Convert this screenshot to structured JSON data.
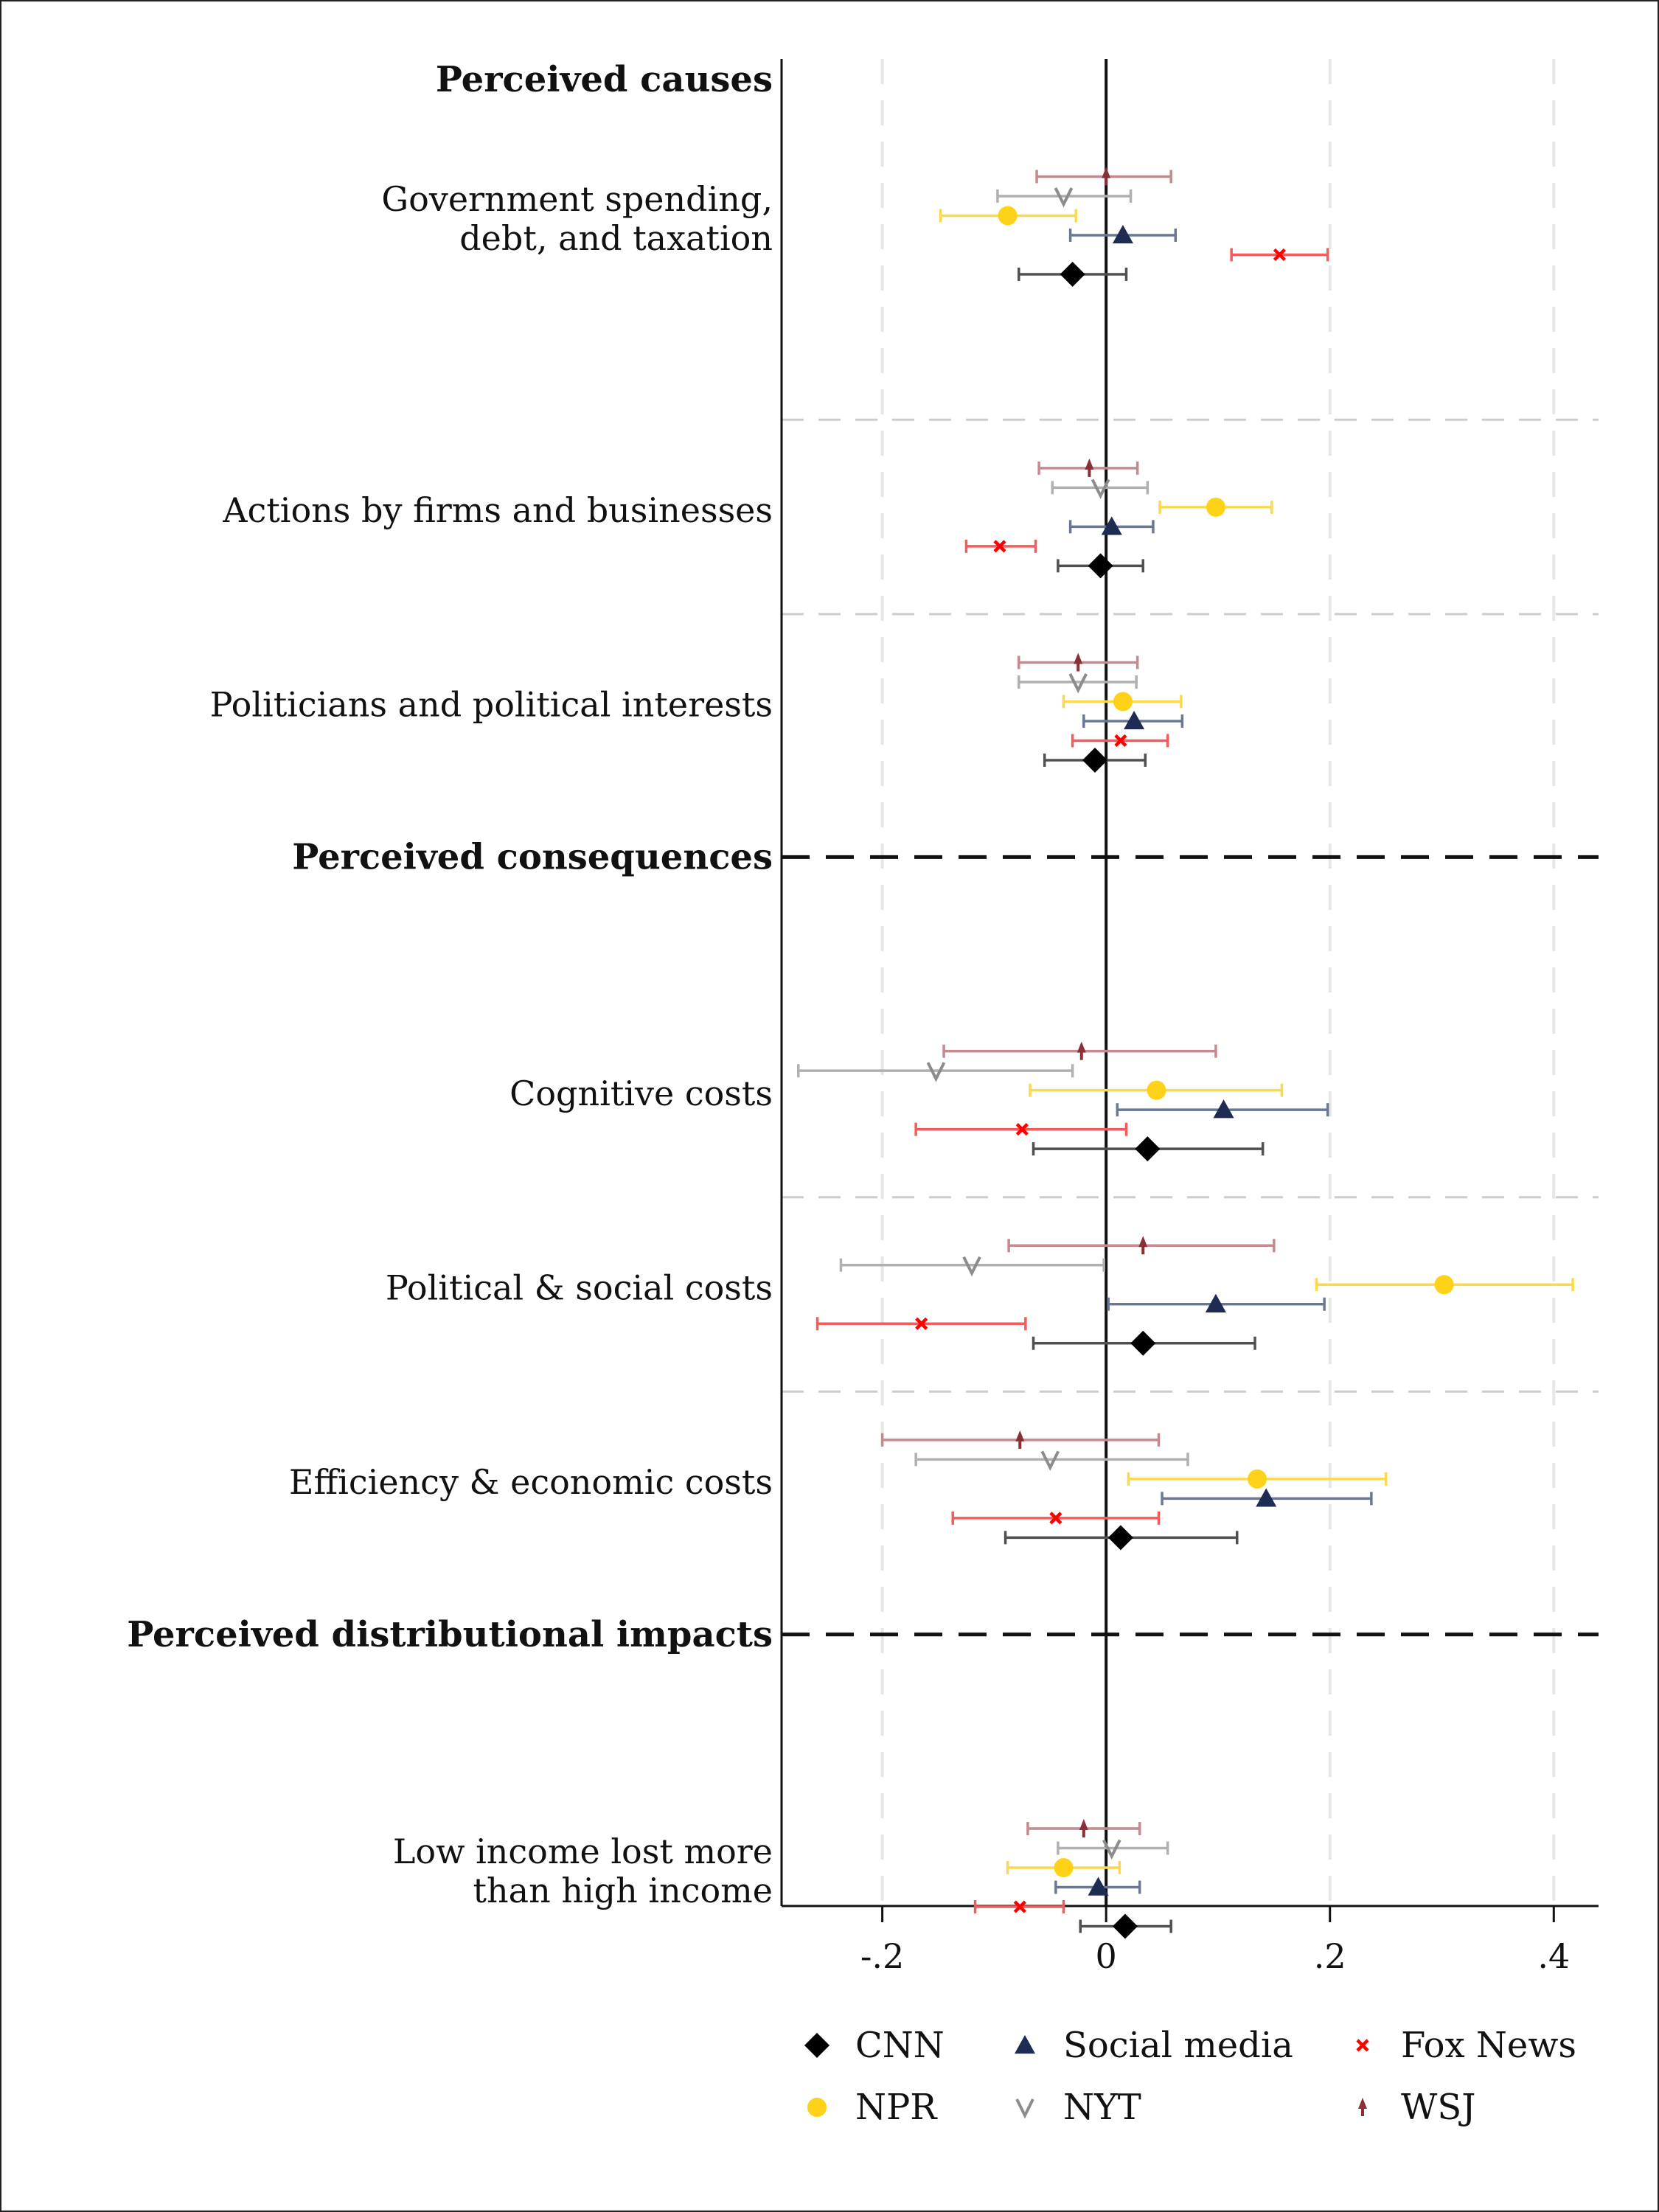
{
  "chart_data": {
    "type": "scatter",
    "subtype": "coefficient-plot-with-error-bars",
    "orientation": "horizontal",
    "xlim": [
      -0.29,
      0.44
    ],
    "x_ticks": [
      -0.2,
      0,
      0.2,
      0.4
    ],
    "x_tick_labels": [
      "-.2",
      "0",
      ".2",
      ".4"
    ],
    "reference_line": 0,
    "grid": "dashed vertical lines at ticks",
    "legend_position": "bottom",
    "sections": [
      {
        "id": "causes",
        "label": "Perceived causes"
      },
      {
        "id": "consequences",
        "label": "Perceived consequences"
      },
      {
        "id": "distributional",
        "label": "Perceived distributional impacts"
      }
    ],
    "categories": [
      {
        "section": "causes",
        "label_lines": [
          "Government spending,",
          "debt, and taxation"
        ]
      },
      {
        "section": "causes",
        "label_lines": [
          "Actions by firms and businesses"
        ]
      },
      {
        "section": "causes",
        "label_lines": [
          "Politicians and political interests"
        ]
      },
      {
        "section": "consequences",
        "label_lines": [
          "Cognitive costs"
        ]
      },
      {
        "section": "consequences",
        "label_lines": [
          "Political & social costs"
        ]
      },
      {
        "section": "consequences",
        "label_lines": [
          "Efficiency & economic costs"
        ]
      },
      {
        "section": "distributional",
        "label_lines": [
          "Low income lost more",
          "than high income"
        ]
      }
    ],
    "series": [
      {
        "name": "WSJ",
        "marker": "arrow-up",
        "color": "#8B2F37",
        "bar_color": "#C48A8F",
        "values": [
          0.0,
          -0.015,
          -0.025,
          -0.022,
          0.033,
          -0.077,
          -0.02
        ],
        "ci_low": [
          -0.062,
          -0.06,
          -0.078,
          -0.145,
          -0.087,
          -0.2,
          -0.07
        ],
        "ci_high": [
          0.058,
          0.028,
          0.028,
          0.098,
          0.15,
          0.047,
          0.03
        ]
      },
      {
        "name": "NYT",
        "marker": "v",
        "color": "#8C8C8C",
        "bar_color": "#B0B0B0",
        "values": [
          -0.038,
          -0.005,
          -0.025,
          -0.152,
          -0.12,
          -0.05,
          0.005
        ],
        "ci_low": [
          -0.097,
          -0.048,
          -0.078,
          -0.275,
          -0.237,
          -0.17,
          -0.043
        ],
        "ci_high": [
          0.022,
          0.037,
          0.027,
          -0.03,
          -0.002,
          0.073,
          0.055
        ]
      },
      {
        "name": "NPR",
        "marker": "circle",
        "color": "#FFD21A",
        "bar_color": "#FCD94C",
        "values": [
          -0.088,
          0.098,
          0.015,
          0.045,
          0.302,
          0.135,
          -0.038
        ],
        "ci_low": [
          -0.148,
          0.048,
          -0.038,
          -0.068,
          0.188,
          0.02,
          -0.088
        ],
        "ci_high": [
          -0.027,
          0.148,
          0.067,
          0.157,
          0.417,
          0.25,
          0.012
        ]
      },
      {
        "name": "Social media",
        "marker": "triangle",
        "color": "#1E2B53",
        "bar_color": "#6B7894",
        "values": [
          0.015,
          0.005,
          0.025,
          0.105,
          0.098,
          0.143,
          -0.007
        ],
        "ci_low": [
          -0.032,
          -0.032,
          -0.02,
          0.01,
          0.002,
          0.05,
          -0.045
        ],
        "ci_high": [
          0.062,
          0.042,
          0.068,
          0.198,
          0.195,
          0.237,
          0.03
        ]
      },
      {
        "name": "Fox News",
        "marker": "x",
        "color": "#FF0000",
        "bar_color": "#F25C5C",
        "values": [
          0.155,
          -0.095,
          0.013,
          -0.075,
          -0.165,
          -0.045,
          -0.077
        ],
        "ci_low": [
          0.112,
          -0.125,
          -0.03,
          -0.17,
          -0.258,
          -0.137,
          -0.117
        ],
        "ci_high": [
          0.198,
          -0.063,
          0.055,
          0.018,
          -0.072,
          0.047,
          -0.038
        ]
      },
      {
        "name": "CNN",
        "marker": "diamond",
        "color": "#000000",
        "bar_color": "#505050",
        "values": [
          -0.03,
          -0.005,
          -0.01,
          0.037,
          0.033,
          0.013,
          0.017
        ],
        "ci_low": [
          -0.078,
          -0.043,
          -0.055,
          -0.065,
          -0.065,
          -0.09,
          -0.023
        ],
        "ci_high": [
          0.018,
          0.033,
          0.035,
          0.14,
          0.133,
          0.117,
          0.058
        ]
      }
    ],
    "legend_order": [
      "CNN",
      "Social media",
      "Fox News",
      "NPR",
      "NYT",
      "WSJ"
    ]
  }
}
